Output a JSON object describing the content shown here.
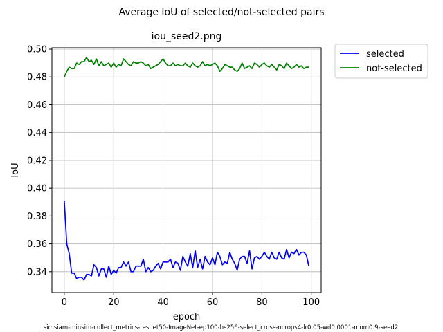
{
  "chart_data": {
    "type": "line",
    "suptitle": "Average IoU of selected/not-selected pairs",
    "title": "iou_seed2.png",
    "xlabel": "epoch",
    "ylabel": "IoU",
    "footer": "simsiam-minsim-collect_metrics-resnet50-ImageNet-ep100-bs256-select_cross-ncrops4-lr0.05-wd0.0001-mom0.9-seed2",
    "xlim": [
      -5,
      104
    ],
    "ylim": [
      0.325,
      0.501
    ],
    "xticks": [
      0,
      20,
      40,
      60,
      80,
      100
    ],
    "yticks": [
      0.34,
      0.36,
      0.38,
      0.4,
      0.42,
      0.44,
      0.46,
      0.48,
      0.5
    ],
    "ytick_labels": [
      "0.34",
      "0.36",
      "0.38",
      "0.40",
      "0.42",
      "0.44",
      "0.46",
      "0.48",
      "0.50"
    ],
    "grid": true,
    "legend_position": "outside-top-right",
    "series": [
      {
        "name": "selected",
        "color": "#0000ff",
        "values": [
          0.391,
          0.36,
          0.353,
          0.339,
          0.339,
          0.335,
          0.336,
          0.336,
          0.334,
          0.338,
          0.338,
          0.337,
          0.345,
          0.343,
          0.337,
          0.342,
          0.342,
          0.336,
          0.344,
          0.338,
          0.341,
          0.339,
          0.343,
          0.343,
          0.347,
          0.344,
          0.347,
          0.34,
          0.34,
          0.344,
          0.344,
          0.344,
          0.349,
          0.34,
          0.343,
          0.34,
          0.341,
          0.344,
          0.346,
          0.342,
          0.347,
          0.347,
          0.347,
          0.349,
          0.343,
          0.347,
          0.346,
          0.341,
          0.351,
          0.347,
          0.344,
          0.353,
          0.343,
          0.355,
          0.343,
          0.349,
          0.342,
          0.351,
          0.347,
          0.345,
          0.35,
          0.345,
          0.354,
          0.351,
          0.345,
          0.347,
          0.346,
          0.354,
          0.349,
          0.346,
          0.341,
          0.349,
          0.351,
          0.351,
          0.346,
          0.355,
          0.342,
          0.35,
          0.351,
          0.349,
          0.351,
          0.354,
          0.351,
          0.349,
          0.354,
          0.35,
          0.349,
          0.354,
          0.35,
          0.349,
          0.356,
          0.35,
          0.354,
          0.353,
          0.356,
          0.352,
          0.354,
          0.354,
          0.352,
          0.344
        ]
      },
      {
        "name": "not-selected",
        "color": "#008000",
        "values": [
          0.48,
          0.484,
          0.487,
          0.486,
          0.486,
          0.49,
          0.489,
          0.491,
          0.491,
          0.494,
          0.491,
          0.492,
          0.489,
          0.493,
          0.488,
          0.491,
          0.488,
          0.489,
          0.49,
          0.487,
          0.49,
          0.487,
          0.489,
          0.488,
          0.493,
          0.491,
          0.489,
          0.488,
          0.491,
          0.49,
          0.49,
          0.491,
          0.49,
          0.488,
          0.489,
          0.486,
          0.487,
          0.488,
          0.489,
          0.491,
          0.493,
          0.49,
          0.488,
          0.488,
          0.49,
          0.488,
          0.489,
          0.488,
          0.488,
          0.49,
          0.488,
          0.487,
          0.49,
          0.488,
          0.487,
          0.488,
          0.491,
          0.488,
          0.489,
          0.488,
          0.489,
          0.49,
          0.488,
          0.484,
          0.486,
          0.489,
          0.488,
          0.487,
          0.487,
          0.485,
          0.484,
          0.486,
          0.49,
          0.486,
          0.487,
          0.488,
          0.486,
          0.49,
          0.489,
          0.487,
          0.489,
          0.49,
          0.488,
          0.487,
          0.489,
          0.487,
          0.485,
          0.489,
          0.488,
          0.486,
          0.49,
          0.488,
          0.486,
          0.487,
          0.489,
          0.487,
          0.488,
          0.486,
          0.487,
          0.487
        ]
      }
    ]
  }
}
